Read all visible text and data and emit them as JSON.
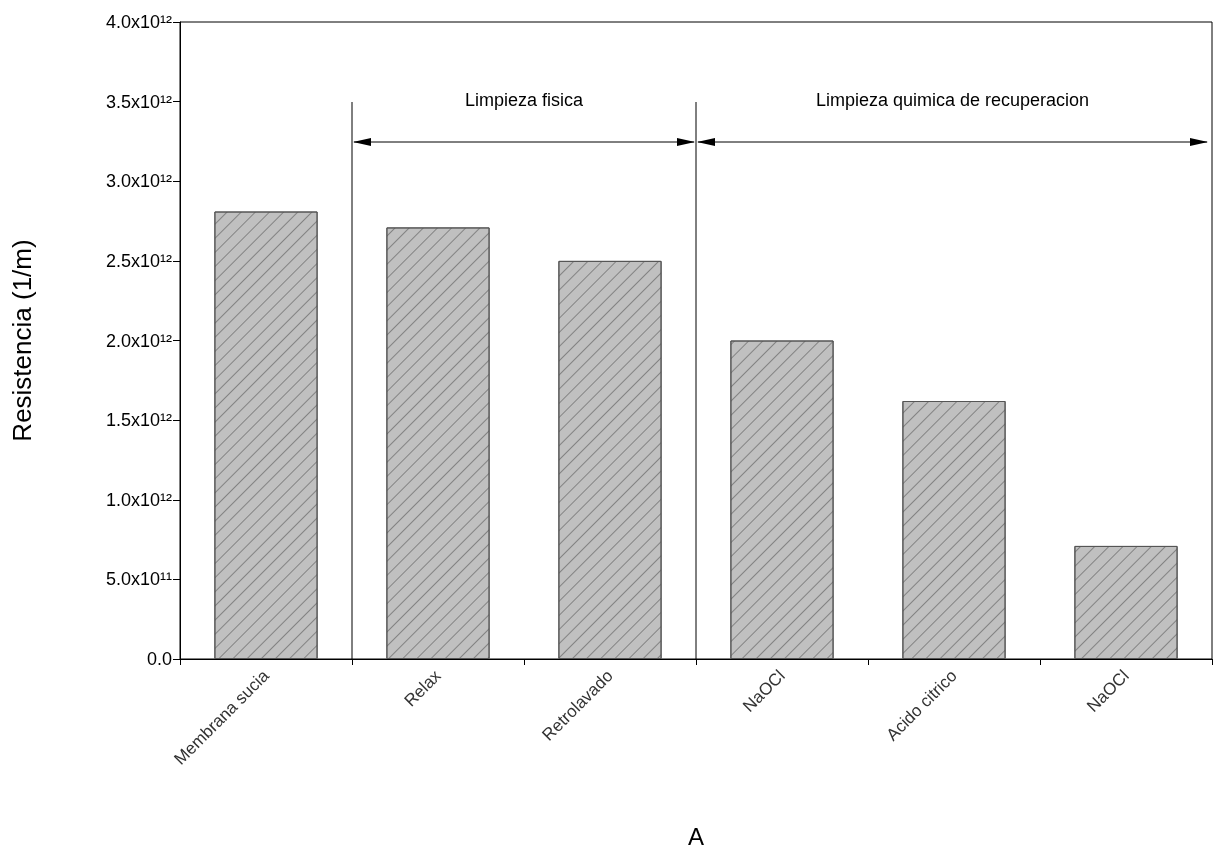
{
  "chart_data": {
    "type": "bar",
    "ylabel": "Resistencia (1/m)",
    "xlabel": "A",
    "categories": [
      "Membrana sucia",
      "Relax",
      "Retrolavado",
      "NaOCl",
      "Acido citrico",
      "NaOCl"
    ],
    "values": [
      2810000000000.0,
      2710000000000.0,
      2500000000000.0,
      2000000000000.0,
      1620000000000.0,
      710000000000.0
    ],
    "color": "#c0c0c0",
    "ylim": [
      0,
      4000000000000.0
    ],
    "yticks": [
      {
        "value": 0,
        "label": "0.0"
      },
      {
        "value": 500000000000.0,
        "label": "5.0x10¹¹"
      },
      {
        "value": 1000000000000.0,
        "label": "1.0x10¹²"
      },
      {
        "value": 1500000000000.0,
        "label": "1.5x10¹²"
      },
      {
        "value": 2000000000000.0,
        "label": "2.0x10¹²"
      },
      {
        "value": 2500000000000.0,
        "label": "2.5x10¹²"
      },
      {
        "value": 3000000000000.0,
        "label": "3.0x10¹²"
      },
      {
        "value": 3500000000000.0,
        "label": "3.5x10¹²"
      },
      {
        "value": 4000000000000.0,
        "label": "4.0x10¹²"
      }
    ],
    "annotations": [
      "Limpieza fisica",
      "Limpieza quimica de recuperacion"
    ]
  }
}
